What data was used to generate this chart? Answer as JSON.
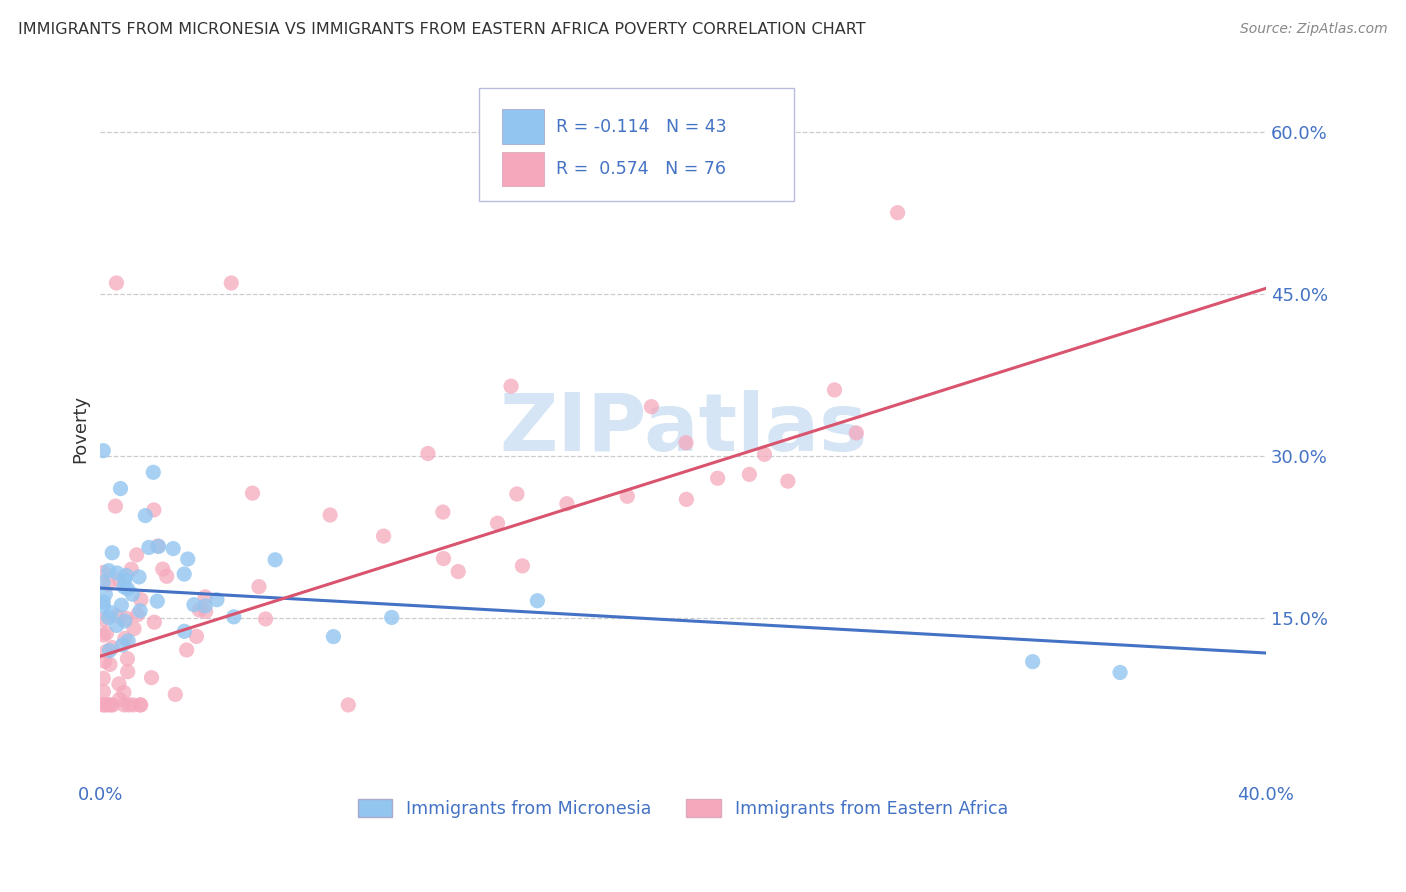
{
  "title": "IMMIGRANTS FROM MICRONESIA VS IMMIGRANTS FROM EASTERN AFRICA POVERTY CORRELATION CHART",
  "source": "Source: ZipAtlas.com",
  "ylabel": "Poverty",
  "xlim": [
    0.0,
    0.4
  ],
  "ylim": [
    0.0,
    0.65
  ],
  "ytick_positions": [
    0.15,
    0.3,
    0.45,
    0.6
  ],
  "ytick_labels": [
    "15.0%",
    "30.0%",
    "45.0%",
    "60.0%"
  ],
  "series1_name": "Immigrants from Micronesia",
  "series1_color": "#92C5F0",
  "series2_name": "Immigrants from Eastern Africa",
  "series2_color": "#F5A8BC",
  "trend1_color": "#4472C4",
  "trend2_color": "#D9546E",
  "legend_text_color": "#4472C4",
  "title_color": "#333333",
  "axis_label_color": "#4472C4",
  "grid_color": "#CCCCCC",
  "watermark_color": "#D5E5F5",
  "background_color": "#FFFFFF",
  "series1_R": -0.114,
  "series1_N": 43,
  "series2_R": 0.574,
  "series2_N": 76,
  "trend1_x0": 0.0,
  "trend1_y0": 0.178,
  "trend1_x1": 0.4,
  "trend1_y1": 0.118,
  "trend2_x0": 0.0,
  "trend2_y0": 0.115,
  "trend2_x1": 0.4,
  "trend2_y1": 0.455
}
